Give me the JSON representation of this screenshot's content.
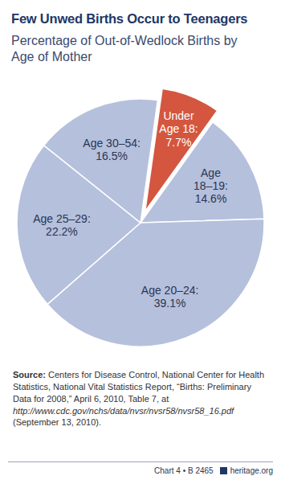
{
  "chart_data": {
    "type": "pie",
    "title": "Few Unwed Births Occur to Teenagers",
    "subtitle": "Percentage of Out-of-Wedlock Births by Age of Mother",
    "categories": [
      "Under Age 18:",
      "Age 18–19:",
      "Age 20–24:",
      "Age 25–29:",
      "Age 30–54:"
    ],
    "values": [
      7.7,
      14.6,
      39.1,
      22.2,
      16.5
    ],
    "value_labels": [
      "7.7%",
      "14.6%",
      "39.1%",
      "22.2%",
      "16.5%"
    ],
    "data_labels": true,
    "colors": [
      "#d4563f",
      "#b5c0dc",
      "#b5c0dc",
      "#b5c0dc",
      "#b5c0dc"
    ],
    "source": "Source: Centers for Disease Control, National Center for Health Statistics, National Vital Statistics Report, “Births: Preliminary Data for 2008,” April 6, 2010, Table 7, at http://www.cdc.gov/nchs/data/nvsr/nvsr58/nvsr58_16.pdf (September 13, 2010).",
    "footer": "Chart 4 • B 2465",
    "publisher": "heritage.org"
  }
}
